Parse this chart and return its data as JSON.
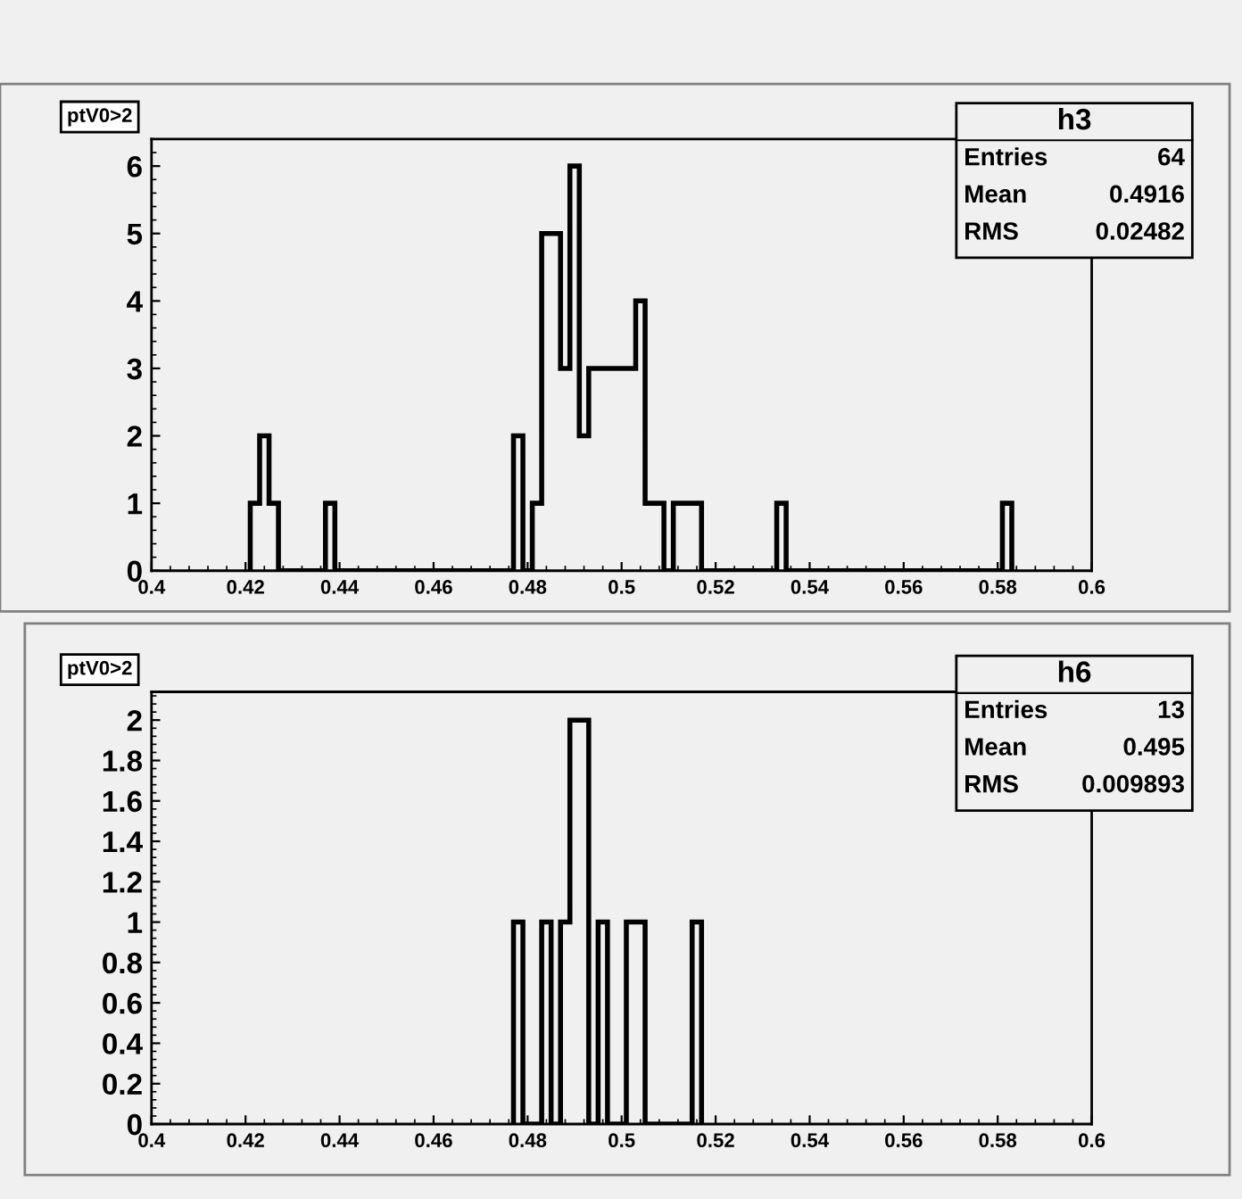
{
  "chart_data": [
    {
      "type": "histogram",
      "title": "ptV0>2",
      "color": "#000000",
      "bins": [
        0.421,
        0.423,
        0.425,
        0.427,
        0.437,
        0.439,
        0.477,
        0.479,
        0.481,
        0.483,
        0.485,
        0.487,
        0.489,
        0.491,
        0.493,
        0.495,
        0.497,
        0.499,
        0.501,
        0.503,
        0.505,
        0.507,
        0.509,
        0.511,
        0.513,
        0.515,
        0.517,
        0.533,
        0.535,
        0.581,
        0.583
      ],
      "values": [
        1,
        2,
        1,
        0,
        1,
        0,
        2,
        0,
        1,
        5,
        5,
        3,
        6,
        2,
        3,
        3,
        3,
        3,
        3,
        4,
        1,
        1,
        0,
        1,
        1,
        1,
        0,
        1,
        0,
        1
      ],
      "xlim": [
        0.4,
        0.6
      ],
      "ylim": [
        0,
        6.4
      ],
      "xticks": [
        0.4,
        0.42,
        0.44,
        0.46,
        0.48,
        0.5,
        0.52,
        0.54,
        0.56,
        0.58,
        0.6
      ],
      "yticks": [
        0,
        1,
        2,
        3,
        4,
        5,
        6
      ],
      "grid": false,
      "legend": false,
      "annotations": [
        "h3",
        "Entries",
        "64",
        "Mean",
        "0.4916",
        "RMS",
        "0.02482"
      ]
    },
    {
      "type": "histogram",
      "title": "ptV0>2",
      "color": "#000000",
      "bins": [
        0.477,
        0.479,
        0.483,
        0.485,
        0.487,
        0.489,
        0.493,
        0.495,
        0.497,
        0.501,
        0.505,
        0.515,
        0.517
      ],
      "values": [
        1,
        0,
        1,
        0,
        1,
        2,
        0,
        1,
        0,
        1,
        0,
        1
      ],
      "xlim": [
        0.4,
        0.6
      ],
      "ylim": [
        0,
        2.14
      ],
      "xticks": [
        0.4,
        0.42,
        0.44,
        0.46,
        0.48,
        0.5,
        0.52,
        0.54,
        0.56,
        0.58,
        0.6
      ],
      "yticks": [
        0,
        0.2,
        0.4,
        0.6,
        0.8,
        1,
        1.2,
        1.4,
        1.6,
        1.8,
        2
      ],
      "grid": false,
      "legend": false,
      "annotations": [
        "h6",
        "Entries",
        "13",
        "Mean",
        "0.495",
        "RMS",
        "0.009893"
      ]
    }
  ]
}
